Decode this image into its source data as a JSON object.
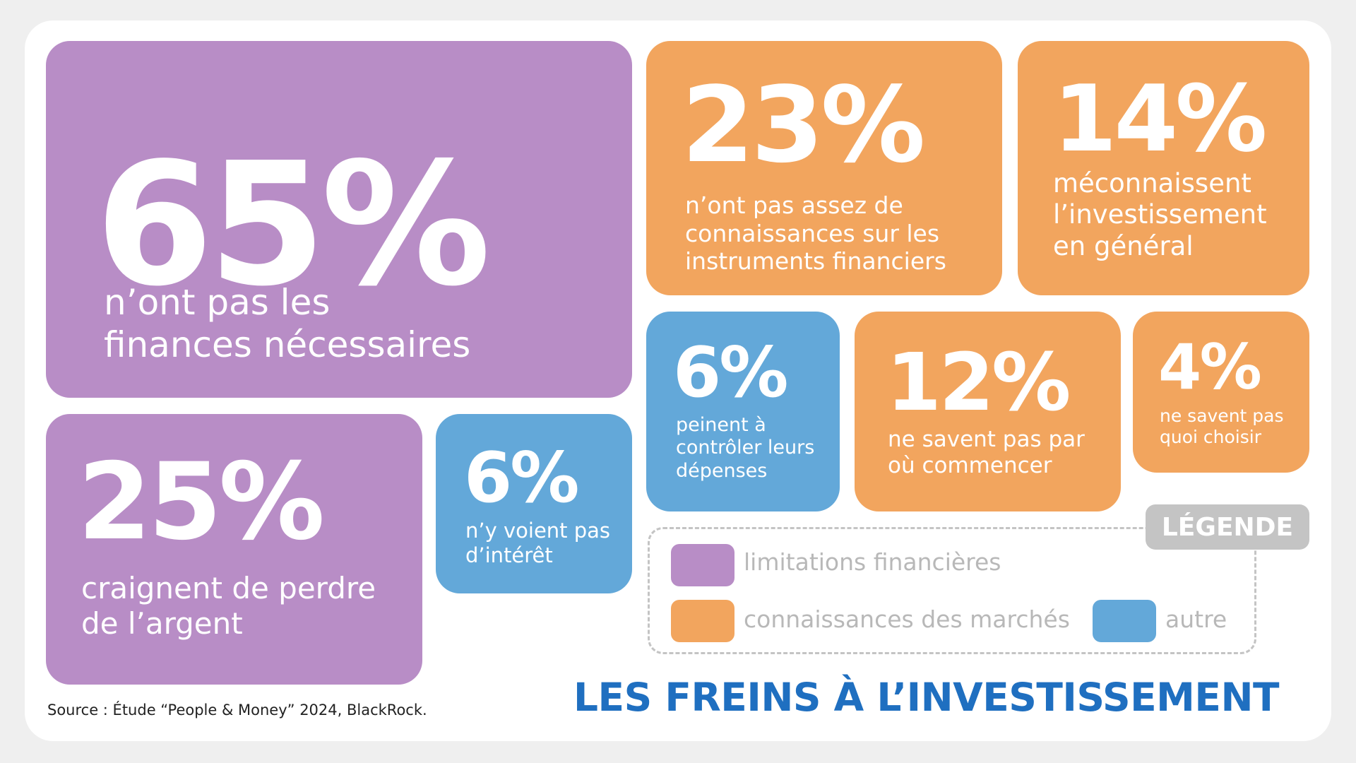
{
  "chart_data": {
    "type": "table",
    "title": "LES FREINS À L’INVESTISSEMENT",
    "source": "Source : Étude “People & Money” 2024, BlackRock.",
    "colors": {
      "limitations": "#b88dc6",
      "connaissances": "#f2a55e",
      "autre": "#63a8d9"
    },
    "items": [
      {
        "value": 65,
        "display": "65%",
        "label": "n’ont pas les finances nécessaires",
        "category": "limitations"
      },
      {
        "value": 25,
        "display": "25%",
        "label": "craignent de perdre de l’argent",
        "category": "limitations"
      },
      {
        "value": 6,
        "display": "6%",
        "label": "n’y voient pas d’intérêt",
        "category": "autre"
      },
      {
        "value": 23,
        "display": "23%",
        "label": "n’ont pas assez de connaissances sur les instruments financiers",
        "category": "connaissances"
      },
      {
        "value": 14,
        "display": "14%",
        "label": "méconnaissent l’investissement en général",
        "category": "connaissances"
      },
      {
        "value": 6,
        "display": "6%",
        "label": "peinent à contrôler leurs dépenses",
        "category": "autre"
      },
      {
        "value": 12,
        "display": "12%",
        "label": "ne savent pas par où commencer",
        "category": "connaissances"
      },
      {
        "value": 4,
        "display": "4%",
        "label": "ne savent pas quoi choisir",
        "category": "connaissances"
      }
    ],
    "legend": {
      "title": "LÉGENDE",
      "entries": [
        {
          "category": "limitations",
          "label": "limitations financières"
        },
        {
          "category": "connaissances",
          "label": "connaissances des marchés"
        },
        {
          "category": "autre",
          "label": "autre"
        }
      ]
    }
  }
}
